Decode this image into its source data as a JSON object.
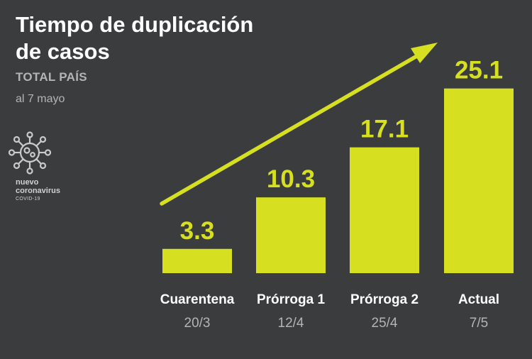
{
  "header": {
    "title": "Tiempo de duplicación de casos",
    "subtitle": "TOTAL PAÍS",
    "date": "al 7 mayo"
  },
  "logo": {
    "icon": "virus-icon",
    "line1": "nuevo",
    "line2": "coronavirus",
    "line3": "COVID-19"
  },
  "colors": {
    "background": "#3b3c3e",
    "bar": "#d6e021",
    "arrow": "#d6e021",
    "text": "#ffffff",
    "muted": "#b3b4b6"
  },
  "chart_data": {
    "type": "bar",
    "title": "Tiempo de duplicación de casos",
    "subtitle": "TOTAL PAÍS",
    "categories": [
      "Cuarentena",
      "Prórroga 1",
      "Prórroga 2",
      "Actual"
    ],
    "dates": [
      "20/3",
      "12/4",
      "25/4",
      "7/5"
    ],
    "values": [
      3.3,
      10.3,
      17.1,
      25.1
    ],
    "value_labels": [
      "3.3",
      "10.3",
      "17.1",
      "25.1"
    ],
    "ylim": [
      0,
      27
    ],
    "grid": false,
    "legend": "none",
    "annotation": "upward-trend-arrow"
  }
}
